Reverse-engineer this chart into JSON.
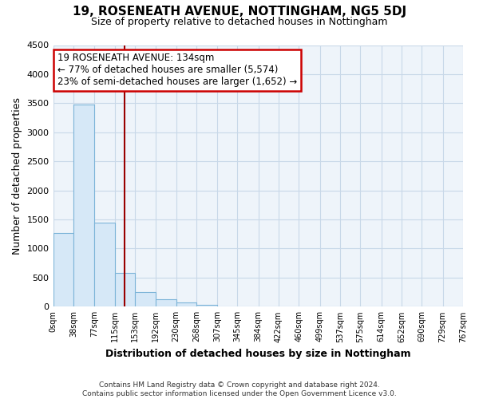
{
  "title": "19, ROSENEATH AVENUE, NOTTINGHAM, NG5 5DJ",
  "subtitle": "Size of property relative to detached houses in Nottingham",
  "xlabel": "Distribution of detached houses by size in Nottingham",
  "ylabel": "Number of detached properties",
  "bar_color": "#d6e8f7",
  "bar_edge_color": "#7cb4d8",
  "grid_color": "#c8d8e8",
  "background_color": "#ffffff",
  "plot_bg_color": "#eef4fa",
  "annotation_box_color": "#ffffff",
  "annotation_border_color": "#cc0000",
  "vline_color": "#990000",
  "bin_edges": [
    0,
    38,
    77,
    115,
    153,
    192,
    230,
    268,
    307,
    345,
    384,
    422,
    460,
    499,
    537,
    575,
    614,
    652,
    690,
    729,
    767
  ],
  "bin_labels": [
    "0sqm",
    "38sqm",
    "77sqm",
    "115sqm",
    "153sqm",
    "192sqm",
    "230sqm",
    "268sqm",
    "307sqm",
    "345sqm",
    "384sqm",
    "422sqm",
    "460sqm",
    "499sqm",
    "537sqm",
    "575sqm",
    "614sqm",
    "652sqm",
    "690sqm",
    "729sqm",
    "767sqm"
  ],
  "bar_heights": [
    1270,
    3480,
    1450,
    580,
    245,
    130,
    75,
    25,
    10,
    5,
    2,
    1,
    0,
    0,
    0,
    0,
    0,
    0,
    0,
    0
  ],
  "ylim": [
    0,
    4500
  ],
  "yticks": [
    0,
    500,
    1000,
    1500,
    2000,
    2500,
    3000,
    3500,
    4000,
    4500
  ],
  "vline_x": 134,
  "annotation_line1": "19 ROSENEATH AVENUE: 134sqm",
  "annotation_line2": "← 77% of detached houses are smaller (5,574)",
  "annotation_line3": "23% of semi-detached houses are larger (1,652) →",
  "footnote1": "Contains HM Land Registry data © Crown copyright and database right 2024.",
  "footnote2": "Contains public sector information licensed under the Open Government Licence v3.0."
}
